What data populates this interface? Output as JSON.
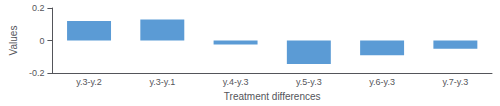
{
  "chart_data": {
    "type": "bar",
    "categories": [
      "y.3-y.2",
      "y.3-y.1",
      "y.4-y.3",
      "y.5-y.3",
      "y.6-y.3",
      "y.7-y.3"
    ],
    "values": [
      0.12,
      0.13,
      -0.025,
      -0.145,
      -0.09,
      -0.05
    ],
    "color": "#5B9BD5",
    "xlabel": "Treatment differences",
    "ylabel": "Values",
    "ylim": [
      -0.2,
      0.2
    ],
    "yticks": [
      -0.2,
      0,
      0.2
    ],
    "grid": false
  }
}
